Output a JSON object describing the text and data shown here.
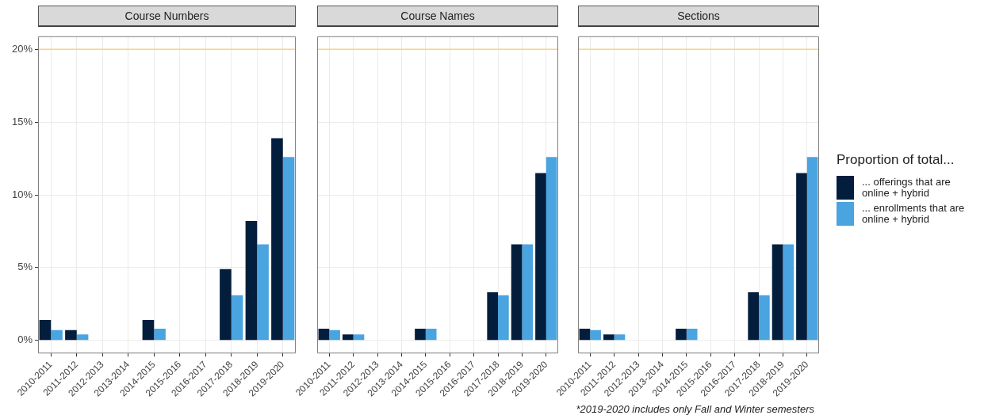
{
  "chart_data": [
    {
      "type": "bar",
      "title": "Course Numbers",
      "categories": [
        "2010-2011",
        "2011-2012",
        "2012-2013",
        "2013-2014",
        "2014-2015",
        "2015-2016",
        "2016-2017",
        "2017-2018",
        "2018-2019",
        "2019-2020"
      ],
      "series": [
        {
          "name": "... offerings that are online + hybrid",
          "color": "#031e3d",
          "values": [
            1.4,
            0.7,
            0,
            0,
            1.4,
            0,
            0,
            4.9,
            8.2,
            13.9
          ]
        },
        {
          "name": "... enrollments that are online + hybrid",
          "color": "#4aa4e0",
          "values": [
            0.7,
            0.4,
            0,
            0,
            0.8,
            0,
            0,
            3.1,
            6.6,
            12.6
          ]
        }
      ],
      "ylim": [
        -0.9,
        20.9
      ],
      "yticks": [
        {
          "value": 0,
          "label": "0%"
        },
        {
          "value": 5,
          "label": "5%"
        },
        {
          "value": 10,
          "label": "10%"
        },
        {
          "value": 15,
          "label": "15%"
        },
        {
          "value": 20,
          "label": "20%"
        }
      ],
      "ref_lines": [
        {
          "axis": "y",
          "value": 20,
          "color": "#f9d67a"
        }
      ],
      "grid": true,
      "legend": "right",
      "legend_title": "Proportion of total..."
    },
    {
      "type": "bar",
      "title": "Course Names",
      "categories": [
        "2010-2011",
        "2011-2012",
        "2012-2013",
        "2013-2014",
        "2014-2015",
        "2015-2016",
        "2016-2017",
        "2017-2018",
        "2018-2019",
        "2019-2020"
      ],
      "series": [
        {
          "color": "#031e3d",
          "values": [
            0.8,
            0.4,
            0,
            0,
            0.8,
            0,
            0,
            3.3,
            6.6,
            11.5
          ]
        },
        {
          "color": "#4aa4e0",
          "values": [
            0.7,
            0.4,
            0,
            0,
            0.8,
            0,
            0,
            3.1,
            6.6,
            12.6
          ]
        }
      ],
      "ylim": [
        -0.9,
        20.9
      ],
      "yticks": [
        {
          "value": 0,
          "label": null
        },
        {
          "value": 5,
          "label": null
        },
        {
          "value": 10,
          "label": null
        },
        {
          "value": 15,
          "label": null
        },
        {
          "value": 20,
          "label": null
        }
      ],
      "ref_lines": [
        {
          "axis": "y",
          "value": 20,
          "color": "#f9d67a"
        }
      ],
      "grid": true,
      "tick_labels": "x"
    },
    {
      "type": "bar",
      "title": "Sections",
      "categories": [
        "2010-2011",
        "2011-2012",
        "2012-2013",
        "2013-2014",
        "2014-2015",
        "2015-2016",
        "2016-2017",
        "2017-2018",
        "2018-2019",
        "2019-2020"
      ],
      "series": [
        {
          "color": "#031e3d",
          "values": [
            0.8,
            0.4,
            0,
            0,
            0.8,
            0,
            0,
            3.3,
            6.6,
            11.5
          ]
        },
        {
          "color": "#4aa4e0",
          "values": [
            0.7,
            0.4,
            0,
            0,
            0.8,
            0,
            0,
            3.1,
            6.6,
            12.6
          ]
        }
      ],
      "ylim": [
        -0.9,
        20.9
      ],
      "yticks": [
        {
          "value": 0,
          "label": null
        },
        {
          "value": 5,
          "label": null
        },
        {
          "value": 10,
          "label": null
        },
        {
          "value": 15,
          "label": null
        },
        {
          "value": 20,
          "label": null
        }
      ],
      "ref_lines": [
        {
          "axis": "y",
          "value": 20,
          "color": "#f9d67a"
        }
      ],
      "grid": true,
      "tick_labels": "x",
      "annotations": [
        "*2019-2020 includes only Fall and Winter semesters"
      ]
    }
  ]
}
